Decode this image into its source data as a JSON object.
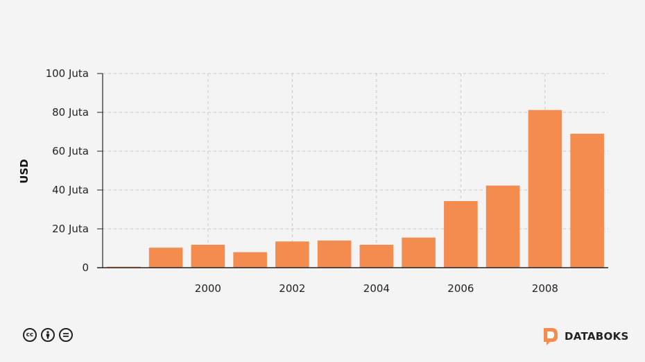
{
  "chart_data": {
    "type": "bar",
    "ylabel": "USD",
    "xlabel": "",
    "x": [
      1998,
      1999,
      2000,
      2001,
      2002,
      2003,
      2004,
      2005,
      2006,
      2007,
      2008,
      2009
    ],
    "values": [
      0.5,
      10.3,
      11.8,
      8.0,
      13.5,
      14.0,
      11.8,
      15.5,
      34.3,
      42.3,
      81.2,
      69.0
    ],
    "xticks": [
      2000,
      2002,
      2004,
      2006,
      2008
    ],
    "xtick_labels": [
      "2000",
      "2002",
      "2004",
      "2006",
      "2008"
    ],
    "ylim": [
      0,
      100
    ],
    "yticks": [
      0,
      20,
      40,
      60,
      80,
      100
    ],
    "ytick_labels": [
      "0",
      "20 Juta",
      "40 Juta",
      "60 Juta",
      "80 Juta",
      "100 Juta"
    ],
    "grid": true,
    "bar_color": "#f48c4f"
  },
  "footer": {
    "license_icons": [
      "cc-icon",
      "by-icon",
      "nd-icon"
    ],
    "brand_name": "DATABOKS",
    "brand_color": "#f48c4f"
  }
}
